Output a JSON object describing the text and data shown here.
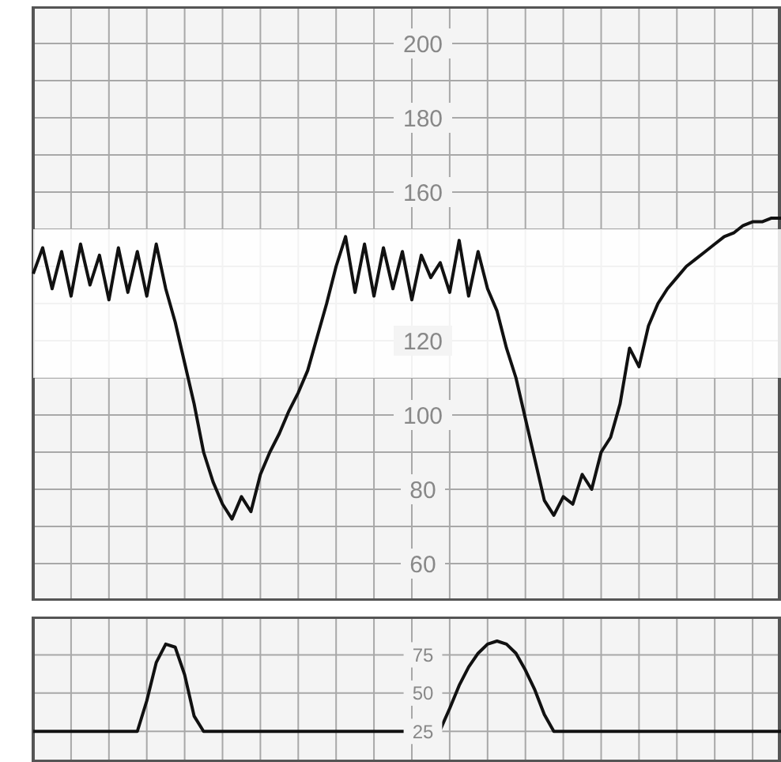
{
  "chart_data": [
    {
      "type": "line",
      "categories": [
        null,
        null,
        null,
        null,
        null,
        null,
        null,
        null,
        null,
        null,
        null,
        null,
        null,
        null,
        null,
        null,
        null,
        null,
        null,
        null,
        null,
        null,
        null,
        null,
        null,
        null,
        null,
        null,
        null,
        null,
        null,
        null,
        null,
        null,
        null,
        null,
        null,
        null,
        null,
        null,
        null,
        null,
        null,
        null,
        null,
        null,
        null,
        null,
        null,
        null,
        null,
        null,
        null,
        null,
        null,
        null,
        null,
        null,
        null,
        null,
        null,
        null,
        null,
        null,
        null,
        null,
        null,
        null,
        null,
        null,
        null,
        null,
        null,
        null,
        null,
        null,
        null,
        null,
        null,
        null
      ],
      "values": [
        138,
        145,
        134,
        144,
        132,
        146,
        135,
        143,
        131,
        145,
        133,
        144,
        132,
        146,
        134,
        125,
        114,
        103,
        90,
        82,
        76,
        72,
        78,
        74,
        84,
        90,
        95,
        101,
        106,
        112,
        121,
        130,
        140,
        148,
        133,
        146,
        132,
        145,
        134,
        144,
        131,
        143,
        137,
        141,
        133,
        147,
        132,
        144,
        134,
        128,
        118,
        110,
        99,
        88,
        77,
        73,
        78,
        76,
        84,
        80,
        90,
        94,
        103,
        118,
        113,
        124,
        130,
        134,
        137,
        140,
        142,
        144,
        146,
        148,
        149,
        151,
        152,
        152,
        153,
        153
      ],
      "color": "#111111",
      "ylim": [
        50,
        210
      ],
      "yticks": [
        60,
        {
          "value": 70,
          "label": null
        },
        80,
        {
          "value": 90,
          "label": null
        },
        100,
        {
          "value": 110,
          "label": null
        },
        120,
        {
          "value": 130,
          "label": null
        },
        {
          "value": 140,
          "label": null
        },
        {
          "value": 150,
          "label": null
        },
        160,
        {
          "value": 170,
          "label": null
        },
        180,
        {
          "value": 190,
          "label": null
        },
        200
      ],
      "grid": true,
      "bands": [
        {
          "axis": "y",
          "from": 110,
          "to": 150,
          "color": "#ffffff"
        }
      ]
    },
    {
      "type": "line",
      "categories": [
        null,
        null,
        null,
        null,
        null,
        null,
        null,
        null,
        null,
        null,
        null,
        null,
        null,
        null,
        null,
        null,
        null,
        null,
        null,
        null,
        null,
        null,
        null,
        null,
        null,
        null,
        null,
        null,
        null,
        null,
        null,
        null,
        null,
        null,
        null,
        null,
        null,
        null,
        null,
        null,
        null,
        null,
        null,
        null,
        null,
        null,
        null,
        null,
        null,
        null,
        null,
        null,
        null,
        null,
        null,
        null,
        null,
        null,
        null,
        null,
        null,
        null,
        null,
        null,
        null,
        null,
        null,
        null,
        null,
        null,
        null,
        null,
        null,
        null,
        null,
        null,
        null,
        null,
        null,
        null
      ],
      "values": [
        25,
        25,
        25,
        25,
        25,
        25,
        25,
        25,
        25,
        25,
        25,
        25,
        45,
        70,
        82,
        80,
        62,
        35,
        25,
        25,
        25,
        25,
        25,
        25,
        25,
        25,
        25,
        25,
        25,
        25,
        25,
        25,
        25,
        25,
        25,
        25,
        25,
        25,
        25,
        25,
        25,
        25,
        25,
        26,
        40,
        55,
        67,
        76,
        82,
        84,
        82,
        76,
        65,
        52,
        36,
        25,
        25,
        25,
        25,
        25,
        25,
        25,
        25,
        25,
        25,
        25,
        25,
        25,
        25,
        25,
        25,
        25,
        25,
        25,
        25,
        25,
        25,
        25,
        25,
        25
      ],
      "color": "#111111",
      "ylim": [
        5,
        100
      ],
      "yticks": [
        25,
        50,
        75
      ],
      "grid": true
    }
  ]
}
